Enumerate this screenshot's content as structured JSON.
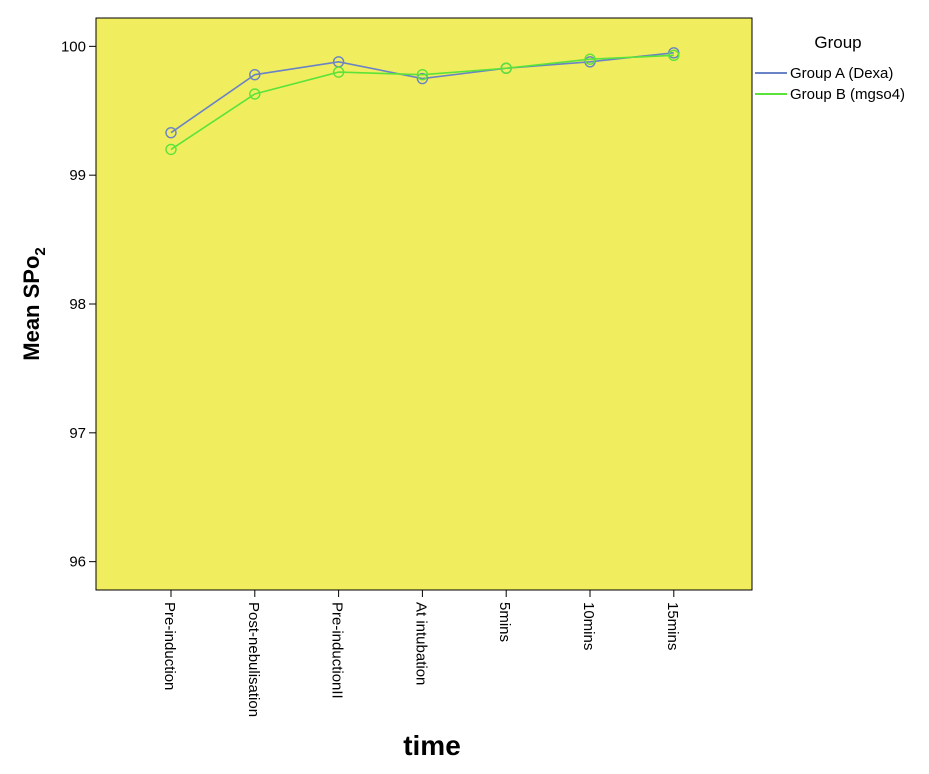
{
  "chart_data": {
    "type": "line",
    "xlabel": "time",
    "ylabel": "Mean SPo",
    "ylabel_subscript": "2",
    "categories": [
      "Pre-induction",
      "Post-nebulisation",
      "Pre-inductionII",
      "At intubation",
      "5mins",
      "10mins",
      "15mins"
    ],
    "ylim": [
      95.78,
      100.22
    ],
    "yticks": [
      96,
      97,
      98,
      99,
      100
    ],
    "grid": false,
    "legend_title": "Group",
    "legend_position": "right",
    "plot_background": "#f0ee5e",
    "series": [
      {
        "name": "Group A (Dexa)",
        "color": "#6a82c6",
        "values": [
          99.33,
          99.78,
          99.88,
          99.75,
          99.83,
          99.88,
          99.95
        ]
      },
      {
        "name": "Group B (mgso4)",
        "color": "#5be33a",
        "values": [
          99.2,
          99.63,
          99.8,
          99.78,
          99.83,
          99.9,
          99.93
        ]
      }
    ]
  }
}
